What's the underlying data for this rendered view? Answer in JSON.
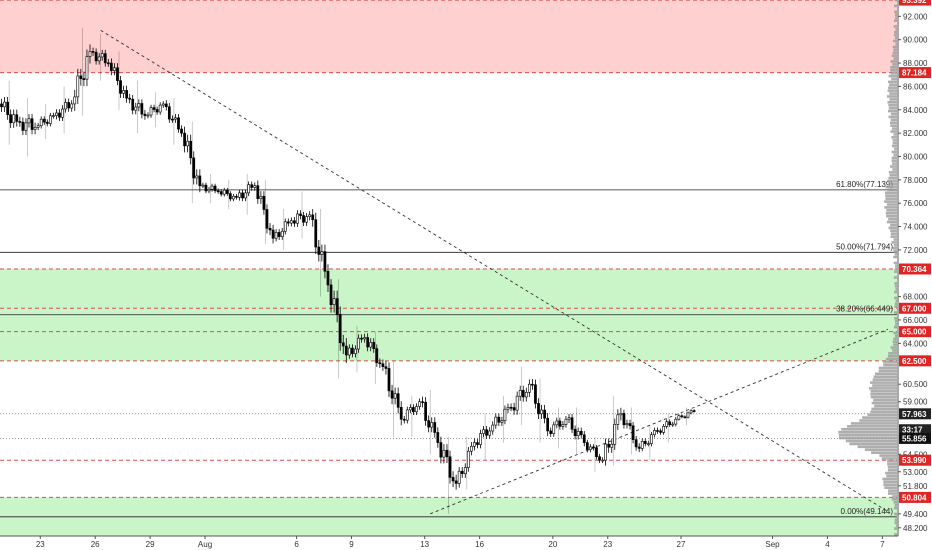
{
  "chart_data": {
    "type": "candlestick",
    "y_axis": {
      "range": [
        47.5,
        93.4
      ],
      "ticks": [
        "92.000",
        "90.000",
        "88.000",
        "86.000",
        "84.000",
        "82.000",
        "80.000",
        "78.000",
        "76.000",
        "74.000",
        "72.000",
        "68.000",
        "66.000",
        "64.000",
        "60.500",
        "59.000",
        "54.500",
        "53.000",
        "51.800",
        "49.400",
        "48.200"
      ],
      "tick_values": [
        92,
        90,
        88,
        86,
        84,
        82,
        80,
        78,
        76,
        74,
        72,
        68,
        66,
        64,
        60.5,
        59,
        54.5,
        53,
        51.8,
        49.4,
        48.2
      ]
    },
    "x_axis": {
      "ticks": [
        {
          "label": "23",
          "bar": 2
        },
        {
          "label": "26",
          "bar": 5
        },
        {
          "label": "29",
          "bar": 8
        },
        {
          "label": "Aug",
          "bar": 11
        },
        {
          "label": "6",
          "bar": 16
        },
        {
          "label": "9",
          "bar": 19
        },
        {
          "label": "13",
          "bar": 23
        },
        {
          "label": "16",
          "bar": 26
        },
        {
          "label": "20",
          "bar": 30
        },
        {
          "label": "23",
          "bar": 33
        },
        {
          "label": "27",
          "bar": 37
        },
        {
          "label": "Sep",
          "bar": 42
        },
        {
          "label": "4",
          "bar": 45
        },
        {
          "label": "7",
          "bar": 48
        }
      ],
      "bar_count": 49
    },
    "zones": [
      {
        "from": 87.184,
        "to": 93.392,
        "color": "#ffd0d0",
        "border": "#e24b4b"
      },
      {
        "from": 62.5,
        "to": 70.364,
        "color": "#c9f5c9",
        "border": "#e24b4b"
      },
      {
        "from": 47.5,
        "to": 50.804,
        "color": "#c9f5c9",
        "border": "#e24b4b"
      }
    ],
    "horizontal_levels": [
      {
        "value": 93.392,
        "label": "93.392",
        "style": "red-dashed"
      },
      {
        "value": 87.184,
        "label": "87.184",
        "style": "red-dashed"
      },
      {
        "value": 70.364,
        "label": "70.364",
        "style": "red-dashed"
      },
      {
        "value": 67.0,
        "label": "67.000",
        "style": "red-dashed"
      },
      {
        "value": 65.0,
        "label": "65.000",
        "style": "red-dashed"
      },
      {
        "value": 62.5,
        "label": "62.500",
        "style": "red-dashed"
      },
      {
        "value": 53.99,
        "label": "53.990",
        "style": "red-dashed"
      },
      {
        "value": 50.804,
        "label": "50.804",
        "style": "red-dashed"
      }
    ],
    "fib_levels": [
      {
        "value": 77.139,
        "label": "61.80%(77.139)"
      },
      {
        "value": 71.794,
        "label": "50.00%(71.794)"
      },
      {
        "value": 66.449,
        "label": "38.20%(66.449)"
      },
      {
        "value": 49.144,
        "label": "0.00%(49.144)"
      }
    ],
    "price_markers": [
      {
        "value": 57.963,
        "label": "57.963",
        "bg": "#222222"
      },
      {
        "value": 56.6,
        "label": "33:17",
        "bg": "#222222"
      },
      {
        "value": 55.856,
        "label": "55.856",
        "bg": "#111111"
      }
    ],
    "dotted_levels": [
      57.963,
      55.856
    ],
    "trendlines": [
      {
        "from": {
          "bar": 5,
          "value": 90.8
        },
        "to": {
          "bar": 48,
          "value": 49.6
        }
      },
      {
        "from": {
          "bar": 23,
          "value": 49.4
        },
        "to": {
          "bar": 48,
          "value": 65.2
        }
      }
    ],
    "candles": [
      [
        84.5,
        86.5,
        81.0,
        83.0
      ],
      [
        83.0,
        85.0,
        80.0,
        82.5
      ],
      [
        82.5,
        84.5,
        81.5,
        83.5
      ],
      [
        83.5,
        86.0,
        82.0,
        84.5
      ],
      [
        84.5,
        91.0,
        83.5,
        89.0
      ],
      [
        89.0,
        90.5,
        86.5,
        88.0
      ],
      [
        88.0,
        89.0,
        84.0,
        85.0
      ],
      [
        85.0,
        86.5,
        82.0,
        83.5
      ],
      [
        83.5,
        85.5,
        82.5,
        84.5
      ],
      [
        84.5,
        85.0,
        81.0,
        82.0
      ],
      [
        82.0,
        83.0,
        76.0,
        77.5
      ],
      [
        77.5,
        78.5,
        76.0,
        77.0
      ],
      [
        77.0,
        78.0,
        75.5,
        76.5
      ],
      [
        76.5,
        78.5,
        75.0,
        77.5
      ],
      [
        77.5,
        78.0,
        72.5,
        73.0
      ],
      [
        73.0,
        75.5,
        72.0,
        74.5
      ],
      [
        74.5,
        77.0,
        73.0,
        75.0
      ],
      [
        75.0,
        75.5,
        68.0,
        69.0
      ],
      [
        69.0,
        69.5,
        61.0,
        63.0
      ],
      [
        63.0,
        65.5,
        61.5,
        64.5
      ],
      [
        64.5,
        65.0,
        60.5,
        62.0
      ],
      [
        62.0,
        62.5,
        56.0,
        57.5
      ],
      [
        57.5,
        59.5,
        56.0,
        59.0
      ],
      [
        59.0,
        60.0,
        54.5,
        55.5
      ],
      [
        55.5,
        56.0,
        49.4,
        52.0
      ],
      [
        52.0,
        56.0,
        51.5,
        55.5
      ],
      [
        55.5,
        58.0,
        54.0,
        57.0
      ],
      [
        57.0,
        59.5,
        55.5,
        58.5
      ],
      [
        58.5,
        62.0,
        57.0,
        60.5
      ],
      [
        60.5,
        61.0,
        55.5,
        56.5
      ],
      [
        56.5,
        58.5,
        55.0,
        57.5
      ],
      [
        57.5,
        58.5,
        54.5,
        55.5
      ],
      [
        55.5,
        56.0,
        53.0,
        54.0
      ],
      [
        54.0,
        59.5,
        53.5,
        58.0
      ],
      [
        58.0,
        58.5,
        54.5,
        55.0
      ],
      [
        55.0,
        57.0,
        54.0,
        56.5
      ],
      [
        56.5,
        58.0,
        55.5,
        57.5
      ],
      [
        57.5,
        58.5,
        57.0,
        58.2
      ]
    ]
  }
}
